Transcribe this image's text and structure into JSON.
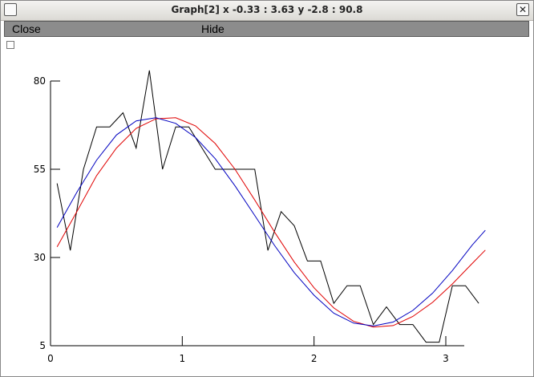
{
  "window": {
    "title": "Graph[2]  x -0.33 : 3.63  y -2.8 : 90.8"
  },
  "menu": {
    "close_label": "Close",
    "hide_label": "Hide"
  },
  "colors": {
    "data_line": "#000000",
    "fit_red": "#e00000",
    "fit_blue": "#0000c0"
  },
  "chart_data": {
    "type": "line",
    "title": "",
    "xlabel": "",
    "ylabel": "",
    "xlim": [
      0.0,
      3.3
    ],
    "ylim": [
      5,
      90
    ],
    "x_ticks": [
      {
        "value": 0,
        "label": "0"
      },
      {
        "value": 1,
        "label": "1"
      },
      {
        "value": 2,
        "label": "2"
      },
      {
        "value": 3,
        "label": "3"
      }
    ],
    "y_ticks": [
      {
        "value": 5,
        "label": "5"
      },
      {
        "value": 30,
        "label": "30"
      },
      {
        "value": 55,
        "label": "55"
      },
      {
        "value": 80,
        "label": "80"
      }
    ],
    "series": [
      {
        "kind": "data",
        "color": "#000000",
        "x": [
          0.05,
          0.15,
          0.25,
          0.35,
          0.45,
          0.55,
          0.65,
          0.75,
          0.85,
          0.95,
          1.05,
          1.15,
          1.25,
          1.35,
          1.45,
          1.55,
          1.65,
          1.75,
          1.85,
          1.95,
          2.05,
          2.15,
          2.25,
          2.35,
          2.45,
          2.55,
          2.65,
          2.75,
          2.85,
          2.95,
          3.05,
          3.15,
          3.25
        ],
        "y": [
          51,
          32,
          55,
          67,
          67,
          71,
          61,
          83,
          55,
          67,
          67,
          61,
          55,
          55,
          55,
          55,
          32,
          43,
          39,
          29,
          29,
          17,
          22,
          22,
          11,
          16,
          11,
          11,
          6,
          6,
          22,
          22,
          17
        ]
      },
      {
        "kind": "fit",
        "color": "#e00000",
        "x": [
          0.05,
          0.2,
          0.35,
          0.5,
          0.65,
          0.8,
          0.95,
          1.1,
          1.25,
          1.4,
          1.55,
          1.7,
          1.85,
          2.0,
          2.15,
          2.3,
          2.45,
          2.6,
          2.75,
          2.9,
          3.05,
          3.2,
          3.3
        ],
        "y": [
          33.0,
          43.0,
          53.2,
          61.0,
          66.6,
          69.3,
          69.6,
          67.3,
          62.3,
          55.0,
          46.3,
          37.2,
          28.7,
          21.4,
          15.7,
          11.9,
          10.3,
          10.7,
          13.3,
          17.3,
          22.5,
          28.3,
          32.1
        ]
      },
      {
        "kind": "fit",
        "color": "#0000c0",
        "x": [
          0.05,
          0.2,
          0.35,
          0.5,
          0.65,
          0.8,
          0.95,
          1.1,
          1.25,
          1.4,
          1.55,
          1.7,
          1.85,
          2.0,
          2.15,
          2.3,
          2.45,
          2.6,
          2.75,
          2.9,
          3.05,
          3.2,
          3.3
        ],
        "y": [
          38.5,
          48.5,
          57.6,
          64.7,
          68.7,
          69.6,
          68.0,
          64.0,
          58.0,
          50.3,
          41.9,
          33.4,
          25.7,
          19.3,
          14.2,
          11.4,
          10.6,
          11.7,
          15.0,
          19.9,
          26.3,
          33.5,
          37.7
        ]
      }
    ]
  }
}
